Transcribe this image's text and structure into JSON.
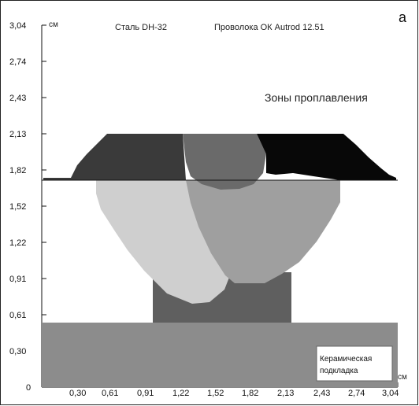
{
  "figure_letter": "а",
  "title_steel": "Сталь DH-32",
  "title_wire": "Проволока ОК Autrod 12.51",
  "zones_label": "Зоны проплавления",
  "axis_unit_y": "см",
  "axis_unit_x": "см",
  "backing_label_line1": "Керамическая",
  "backing_label_line2": "подкладка",
  "y_ticks": [
    "3,04",
    "2,74",
    "2,43",
    "2,13",
    "1,82",
    "1,52",
    "1,22",
    "0,91",
    "0,61",
    "0,30",
    "0"
  ],
  "x_ticks": [
    "0,30",
    "0,61",
    "0,91",
    "1,22",
    "1,52",
    "1,82",
    "2,13",
    "2,43",
    "2,74",
    "3,04"
  ],
  "colors": {
    "backing": "#8c8c8c",
    "root_pass": "#5f5f5f",
    "left_fill_pass": "#cfcfcf",
    "right_fill_pass": "#9f9f9f",
    "cap_left": "#3a3a3a",
    "cap_middle": "#6a6a6a",
    "cap_right": "#080808"
  }
}
